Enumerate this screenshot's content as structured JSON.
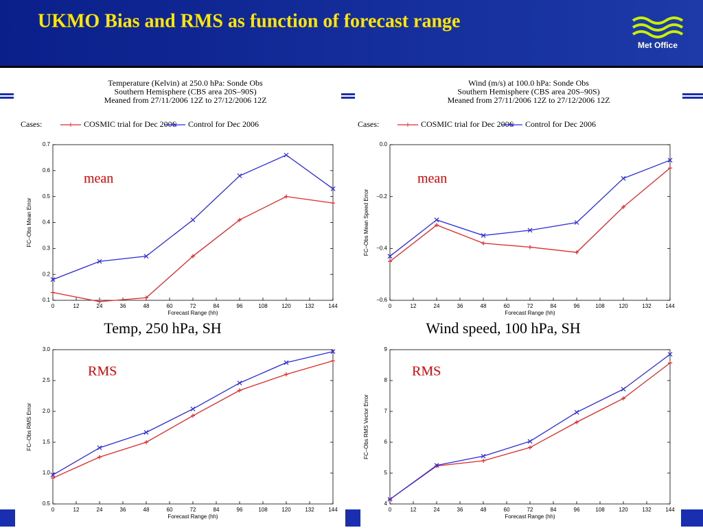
{
  "slide_title": "UKMO Bias and RMS as function of forecast range",
  "logo": "Met Office",
  "chart_data": [
    {
      "type": "line",
      "title": [
        "Temperature (Kelvin) at 250.0 hPa:  Sonde Obs",
        "Southern Hemisphere (CBS area 20S–90S)",
        "Meaned from 27/11/2006 12Z to 27/12/2006 12Z"
      ],
      "cases_label": "Cases:",
      "caption": "Temp, 250 hPa, SH",
      "annotation": "mean",
      "x_label": "Forecast Range (hh)",
      "y_label": "FC–Obs Mean Error",
      "x": [
        0,
        24,
        48,
        72,
        96,
        120,
        144
      ],
      "series": [
        {
          "name": "COSMIC trial for Dec 2006",
          "color": "#e02828",
          "marker": "+",
          "values": [
            0.13,
            0.095,
            0.11,
            0.27,
            0.41,
            0.5,
            0.475
          ]
        },
        {
          "name": "Control for Dec 2006",
          "color": "#2a2ae0",
          "marker": "x",
          "values": [
            0.18,
            0.25,
            0.27,
            0.41,
            0.58,
            0.66,
            0.53
          ]
        }
      ],
      "xlim": [
        0,
        144
      ],
      "xticks": [
        0,
        12,
        24,
        36,
        48,
        60,
        72,
        84,
        96,
        108,
        120,
        132,
        144
      ],
      "ylim": [
        0.1,
        0.7
      ],
      "yticks": [
        0.1,
        0.2,
        0.3,
        0.4,
        0.5,
        0.6,
        0.7
      ]
    },
    {
      "type": "line",
      "title": [
        "Wind (m/s) at 100.0 hPa:  Sonde Obs",
        "Southern Hemisphere (CBS area 20S–90S)",
        "Meaned from 27/11/2006 12Z to 27/12/2006 12Z"
      ],
      "cases_label": "Cases:",
      "caption": "Wind speed, 100 hPa, SH",
      "annotation": "mean",
      "x_label": "Forecast Range (hh)",
      "y_label": "FC–Obs Mean Speed Error",
      "x": [
        0,
        24,
        48,
        72,
        96,
        120,
        144
      ],
      "series": [
        {
          "name": "COSMIC trial for Dec 2006",
          "color": "#e02828",
          "marker": "+",
          "values": [
            -0.45,
            -0.31,
            -0.38,
            -0.395,
            -0.415,
            -0.24,
            -0.09
          ]
        },
        {
          "name": "Control for Dec 2006",
          "color": "#2a2ae0",
          "marker": "x",
          "values": [
            -0.43,
            -0.29,
            -0.35,
            -0.33,
            -0.3,
            -0.13,
            -0.06
          ]
        }
      ],
      "xlim": [
        0,
        144
      ],
      "xticks": [
        0,
        12,
        24,
        36,
        48,
        60,
        72,
        84,
        96,
        108,
        120,
        132,
        144
      ],
      "ylim": [
        -0.6,
        0
      ],
      "yticks": [
        {
          "value": -0.6,
          "label": "−0.6"
        },
        {
          "value": -0.4,
          "label": "−0.4"
        },
        {
          "value": -0.2,
          "label": "−0.2"
        },
        {
          "value": 0,
          "label": "0.0"
        }
      ]
    },
    {
      "type": "line",
      "annotation": "RMS",
      "x_label": "Forecast Range (hh)",
      "y_label": "FC–Obs RMS Error",
      "x": [
        0,
        24,
        48,
        72,
        96,
        120,
        144
      ],
      "series": [
        {
          "name": "COSMIC trial for Dec 2006",
          "color": "#e02828",
          "marker": "+",
          "values": [
            0.92,
            1.26,
            1.5,
            1.93,
            2.34,
            2.6,
            2.82
          ]
        },
        {
          "name": "Control for Dec 2006",
          "color": "#2a2ae0",
          "marker": "x",
          "values": [
            0.97,
            1.41,
            1.66,
            2.04,
            2.46,
            2.79,
            2.97
          ]
        }
      ],
      "xlim": [
        0,
        144
      ],
      "xticks": [
        0,
        12,
        24,
        36,
        48,
        60,
        72,
        84,
        96,
        108,
        120,
        132,
        144
      ],
      "ylim": [
        0.5,
        3
      ],
      "yticks": [
        0.5,
        {
          "value": 1,
          "label": "1.0"
        },
        1.5,
        {
          "value": 2,
          "label": "2.0"
        },
        2.5,
        {
          "value": 3,
          "label": "3.0"
        }
      ]
    },
    {
      "type": "line",
      "annotation": "RMS",
      "x_label": "Forecast Range (hh)",
      "y_label": "FC–Obs RMS Vector Error",
      "x": [
        0,
        24,
        48,
        72,
        96,
        120,
        144
      ],
      "series": [
        {
          "name": "COSMIC trial for Dec 2006",
          "color": "#e02828",
          "marker": "+",
          "values": [
            4.15,
            5.23,
            5.4,
            5.83,
            6.65,
            7.42,
            8.57
          ]
        },
        {
          "name": "Control for Dec 2006",
          "color": "#2a2ae0",
          "marker": "x",
          "values": [
            4.15,
            5.25,
            5.55,
            6.03,
            6.97,
            7.72,
            8.85
          ]
        }
      ],
      "xlim": [
        0,
        144
      ],
      "xticks": [
        0,
        12,
        24,
        36,
        48,
        60,
        72,
        84,
        96,
        108,
        120,
        132,
        144
      ],
      "ylim": [
        4,
        9
      ],
      "yticks": [
        4,
        5,
        6,
        7,
        8,
        9
      ]
    }
  ]
}
